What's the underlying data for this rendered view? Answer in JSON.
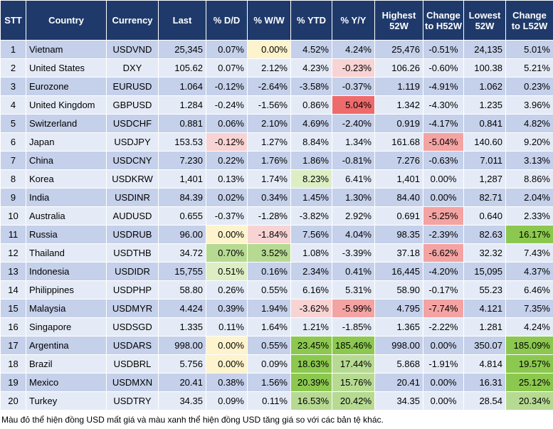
{
  "columns": [
    "STT",
    "Country",
    "Currency",
    "Last",
    "% D/D",
    "% W/W",
    "% YTD",
    "% Y/Y",
    "Highest 52W",
    "Change to H52W",
    "Lowest 52W",
    "Change to L52W"
  ],
  "rows": [
    [
      "1",
      "Vietnam",
      "USDVND",
      "25,345",
      "0.07%",
      "0.00%",
      "4.52%",
      "4.24%",
      "25,476",
      "-0.51%",
      "24,135",
      "5.01%"
    ],
    [
      "2",
      "United States",
      "DXY",
      "105.62",
      "0.07%",
      "2.12%",
      "4.23%",
      "-0.23%",
      "106.26",
      "-0.60%",
      "100.38",
      "5.21%"
    ],
    [
      "3",
      "Eurozone",
      "EURUSD",
      "1.064",
      "-0.12%",
      "-2.64%",
      "-3.58%",
      "-0.37%",
      "1.119",
      "-4.91%",
      "1.062",
      "0.23%"
    ],
    [
      "4",
      "United Kingdom",
      "GBPUSD",
      "1.284",
      "-0.24%",
      "-1.56%",
      "0.86%",
      "5.04%",
      "1.342",
      "-4.30%",
      "1.235",
      "3.96%"
    ],
    [
      "5",
      "Switzerland",
      "USDCHF",
      "0.881",
      "0.06%",
      "2.10%",
      "4.69%",
      "-2.40%",
      "0.919",
      "-4.17%",
      "0.841",
      "4.82%"
    ],
    [
      "6",
      "Japan",
      "USDJPY",
      "153.53",
      "-0.12%",
      "1.27%",
      "8.84%",
      "1.34%",
      "161.68",
      "-5.04%",
      "140.60",
      "9.20%"
    ],
    [
      "7",
      "China",
      "USDCNY",
      "7.230",
      "0.22%",
      "1.76%",
      "1.86%",
      "-0.81%",
      "7.276",
      "-0.63%",
      "7.011",
      "3.13%"
    ],
    [
      "8",
      "Korea",
      "USDKRW",
      "1,401",
      "0.13%",
      "1.74%",
      "8.23%",
      "6.41%",
      "1,401",
      "0.00%",
      "1,287",
      "8.86%"
    ],
    [
      "9",
      "India",
      "USDINR",
      "84.39",
      "0.02%",
      "0.34%",
      "1.45%",
      "1.30%",
      "84.40",
      "0.00%",
      "82.71",
      "2.04%"
    ],
    [
      "10",
      "Australia",
      "AUDUSD",
      "0.655",
      "-0.37%",
      "-1.28%",
      "-3.82%",
      "2.92%",
      "0.691",
      "-5.25%",
      "0.640",
      "2.33%"
    ],
    [
      "11",
      "Russia",
      "USDRUB",
      "96.00",
      "0.00%",
      "-1.84%",
      "7.56%",
      "4.04%",
      "98.35",
      "-2.39%",
      "82.63",
      "16.17%"
    ],
    [
      "12",
      "Thailand",
      "USDTHB",
      "34.72",
      "0.70%",
      "3.52%",
      "1.08%",
      "-3.39%",
      "37.18",
      "-6.62%",
      "32.32",
      "7.43%"
    ],
    [
      "13",
      "Indonesia",
      "USDIDR",
      "15,755",
      "0.51%",
      "0.16%",
      "2.34%",
      "0.41%",
      "16,445",
      "-4.20%",
      "15,095",
      "4.37%"
    ],
    [
      "14",
      "Philippines",
      "USDPHP",
      "58.80",
      "0.26%",
      "0.55%",
      "6.16%",
      "5.31%",
      "58.90",
      "-0.17%",
      "55.23",
      "6.46%"
    ],
    [
      "15",
      "Malaysia",
      "USDMYR",
      "4.424",
      "0.39%",
      "1.94%",
      "-3.62%",
      "-5.99%",
      "4.795",
      "-7.74%",
      "4.121",
      "7.35%"
    ],
    [
      "16",
      "Singapore",
      "USDSGD",
      "1.335",
      "0.11%",
      "1.64%",
      "1.21%",
      "-1.85%",
      "1.365",
      "-2.22%",
      "1.281",
      "4.24%"
    ],
    [
      "17",
      "Argentina",
      "USDARS",
      "998.00",
      "0.00%",
      "0.55%",
      "23.45%",
      "185.46%",
      "998.00",
      "0.00%",
      "350.07",
      "185.09%"
    ],
    [
      "18",
      "Brazil",
      "USDBRL",
      "5.756",
      "0.00%",
      "0.09%",
      "18.63%",
      "17.44%",
      "5.868",
      "-1.91%",
      "4.814",
      "19.57%"
    ],
    [
      "19",
      "Mexico",
      "USDMXN",
      "20.41",
      "0.38%",
      "1.56%",
      "20.39%",
      "15.76%",
      "20.41",
      "0.00%",
      "16.31",
      "25.12%"
    ],
    [
      "20",
      "Turkey",
      "USDTRY",
      "34.35",
      "0.09%",
      "0.11%",
      "16.53%",
      "20.42%",
      "34.35",
      "0.00%",
      "28.54",
      "20.34%"
    ]
  ],
  "cell_colors": [
    [
      "",
      "",
      "",
      "",
      "",
      "zero",
      "",
      "",
      "",
      "",
      "",
      ""
    ],
    [
      "",
      "",
      "",
      "",
      "",
      "",
      "",
      "neg1",
      "",
      "",
      "",
      ""
    ],
    [
      "",
      "",
      "",
      "",
      "",
      "",
      "",
      "",
      "",
      "",
      "",
      ""
    ],
    [
      "",
      "",
      "",
      "",
      "",
      "",
      "",
      "neg3",
      "",
      "",
      "",
      ""
    ],
    [
      "",
      "",
      "",
      "",
      "",
      "",
      "",
      "",
      "",
      "",
      "",
      ""
    ],
    [
      "",
      "",
      "",
      "",
      "neg1",
      "",
      "",
      "",
      "",
      "neg2",
      "",
      ""
    ],
    [
      "",
      "",
      "",
      "",
      "",
      "",
      "",
      "",
      "",
      "",
      "",
      ""
    ],
    [
      "",
      "",
      "",
      "",
      "",
      "",
      "pos1",
      "",
      "",
      "",
      "",
      ""
    ],
    [
      "",
      "",
      "",
      "",
      "",
      "",
      "",
      "",
      "",
      "",
      "",
      ""
    ],
    [
      "",
      "",
      "",
      "",
      "",
      "",
      "",
      "",
      "",
      "neg2",
      "",
      ""
    ],
    [
      "",
      "",
      "",
      "",
      "zero",
      "neg1",
      "",
      "",
      "",
      "",
      "",
      "pos3"
    ],
    [
      "",
      "",
      "",
      "",
      "pos2",
      "pos2",
      "",
      "",
      "",
      "neg2",
      "",
      ""
    ],
    [
      "",
      "",
      "",
      "",
      "pos1",
      "",
      "",
      "",
      "",
      "",
      "",
      ""
    ],
    [
      "",
      "",
      "",
      "",
      "",
      "",
      "",
      "",
      "",
      "",
      "",
      ""
    ],
    [
      "",
      "",
      "",
      "",
      "",
      "",
      "neg1",
      "neg2",
      "",
      "neg2",
      "",
      ""
    ],
    [
      "",
      "",
      "",
      "",
      "",
      "",
      "",
      "",
      "",
      "",
      "",
      ""
    ],
    [
      "",
      "",
      "",
      "",
      "zero",
      "",
      "pos3",
      "pos3",
      "",
      "",
      "",
      "pos3"
    ],
    [
      "",
      "",
      "",
      "",
      "zero",
      "",
      "pos3",
      "pos2",
      "",
      "",
      "",
      "pos3"
    ],
    [
      "",
      "",
      "",
      "",
      "",
      "",
      "pos3",
      "pos2",
      "",
      "",
      "",
      "pos3"
    ],
    [
      "",
      "",
      "",
      "",
      "",
      "",
      "pos2",
      "pos2",
      "",
      "",
      "",
      "pos2"
    ]
  ],
  "footnote": "Màu đỏ thể hiện đồng USD mất giá và màu xanh thể hiện đồng USD tăng giá so với các bản tệ khác."
}
